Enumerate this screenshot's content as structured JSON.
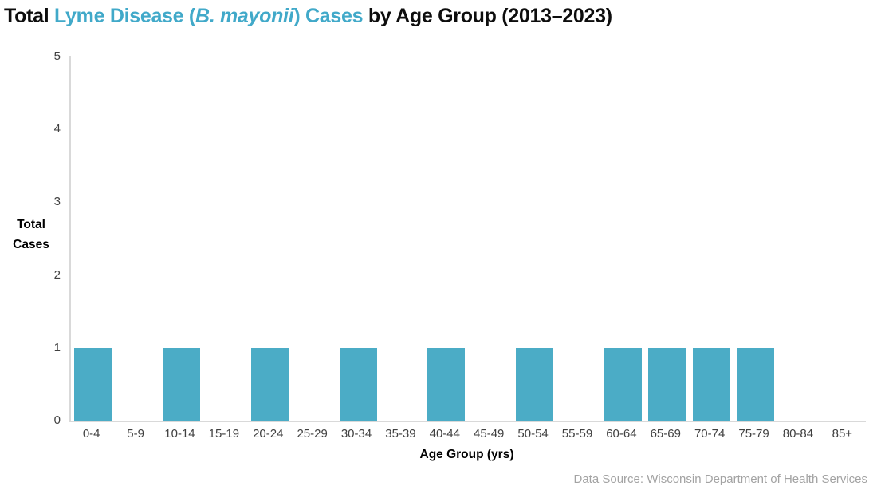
{
  "title": {
    "part1": "Total ",
    "highlight_pre": "Lyme Disease (",
    "highlight_italic": "B. mayonii",
    "highlight_post": ") Cases",
    "part2": " by Age Group (2013–2023)",
    "highlight_color": "#41A9C9",
    "text_color": "#0d0d0d"
  },
  "y_axis": {
    "label_line1": "Total",
    "label_line2": "Cases",
    "ticks_top_to_bottom": [
      5,
      4,
      3,
      2,
      1,
      0
    ]
  },
  "x_axis": {
    "label": "Age Group (yrs)"
  },
  "footer": {
    "source": "Data Source: Wisconsin Department of Health Services"
  },
  "chart_data": {
    "type": "bar",
    "title": "Total Lyme Disease (B. mayonii) Cases by Age Group (2013–2023)",
    "categories": [
      "0-4",
      "5-9",
      "10-14",
      "15-19",
      "20-24",
      "25-29",
      "30-34",
      "35-39",
      "40-44",
      "45-49",
      "50-54",
      "55-59",
      "60-64",
      "65-69",
      "70-74",
      "75-79",
      "80-84",
      "85+"
    ],
    "values": [
      1,
      0,
      1,
      0,
      1,
      0,
      1,
      0,
      1,
      0,
      1,
      0,
      1,
      1,
      1,
      1,
      0,
      0
    ],
    "xlabel": "Age Group (yrs)",
    "ylabel": "Total Cases",
    "ylim": [
      0,
      5
    ],
    "yticks": [
      0,
      1,
      2,
      3,
      4,
      5
    ],
    "bar_color": "#4BACC6",
    "axis_line_color": "#D9D9D9",
    "grid": false,
    "legend": false,
    "annotation": "Data Source: Wisconsin Department of Health Services"
  }
}
